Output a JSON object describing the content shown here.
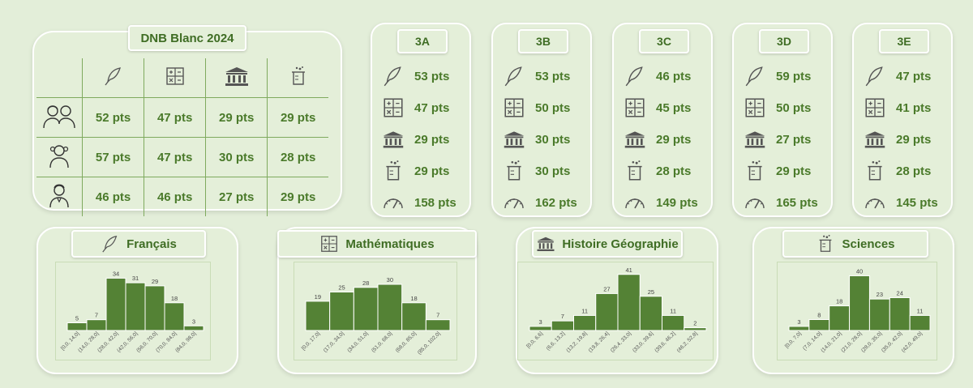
{
  "overview": {
    "title": "DNB Blanc 2024",
    "columns": [
      {
        "icon": "quill-icon"
      },
      {
        "icon": "calculator-icon"
      },
      {
        "icon": "museum-icon"
      },
      {
        "icon": "beaker-icon"
      }
    ],
    "rows": [
      {
        "icon": "students-group-icon",
        "values": [
          "52 pts",
          "47 pts",
          "29 pts",
          "29 pts"
        ]
      },
      {
        "icon": "girl-icon",
        "values": [
          "57 pts",
          "47 pts",
          "30 pts",
          "28 pts"
        ]
      },
      {
        "icon": "boy-icon",
        "values": [
          "46 pts",
          "46 pts",
          "27 pts",
          "29 pts"
        ]
      }
    ]
  },
  "classes": [
    {
      "name": "3A",
      "values": [
        "53 pts",
        "47 pts",
        "29 pts",
        "29 pts",
        "158 pts"
      ]
    },
    {
      "name": "3B",
      "values": [
        "53 pts",
        "50 pts",
        "30 pts",
        "30 pts",
        "162 pts"
      ]
    },
    {
      "name": "3C",
      "values": [
        "46 pts",
        "45 pts",
        "29 pts",
        "28 pts",
        "149 pts"
      ]
    },
    {
      "name": "3D",
      "values": [
        "59 pts",
        "50 pts",
        "27 pts",
        "29 pts",
        "165 pts"
      ]
    },
    {
      "name": "3E",
      "values": [
        "47 pts",
        "41 pts",
        "29 pts",
        "28 pts",
        "145 pts"
      ]
    }
  ],
  "class_icons": [
    "quill-icon",
    "calculator-icon",
    "museum-icon",
    "beaker-icon",
    "gauge-icon"
  ],
  "colors": {
    "bar": "#548235",
    "text": "#4a7a2a",
    "card_bg": "#e4efd9",
    "page_bg": "#e3eed9"
  },
  "subjects": [
    {
      "title": "Français",
      "icon": "quill-icon"
    },
    {
      "title": "Mathématiques",
      "icon": "calculator-icon"
    },
    {
      "title": "Histoire Géographie",
      "icon": "museum-icon"
    },
    {
      "title": "Sciences",
      "icon": "beaker-icon"
    }
  ],
  "chart_data": [
    {
      "type": "bar",
      "title": "Français",
      "categories": [
        "[0,0, 14,0]",
        "(14,0, 28,0]",
        "(28,0, 42,0]",
        "(42,0, 56,0]",
        "(56,0, 70,0]",
        "(70,0, 84,0]",
        "(84,0, 98,0]"
      ],
      "values": [
        5,
        7,
        34,
        31,
        29,
        18,
        3
      ],
      "ylim": [
        0,
        40
      ]
    },
    {
      "type": "bar",
      "title": "Mathématiques",
      "categories": [
        "[0,0, 17,0]",
        "(17,0, 34,0]",
        "(34,0, 51,0]",
        "(51,0, 68,0]",
        "(68,0, 85,0]",
        "(85,0, 102,0]"
      ],
      "values": [
        19,
        25,
        28,
        30,
        18,
        7
      ],
      "ylim": [
        0,
        40
      ]
    },
    {
      "type": "bar",
      "title": "Histoire Géographie",
      "categories": [
        "[0,0, 6,6]",
        "(6,6, 13,2]",
        "(13,2, 19,8]",
        "(19,8, 26,4]",
        "(26,4, 33,0]",
        "(33,0, 39,6]",
        "(39,6, 46,2]",
        "(46,2, 52,8]"
      ],
      "values": [
        3,
        7,
        11,
        27,
        41,
        25,
        11,
        2
      ],
      "ylim": [
        0,
        45
      ]
    },
    {
      "type": "bar",
      "title": "Sciences",
      "categories": [
        "[0,0, 7,0]",
        "(7,0, 14,0]",
        "(14,0, 21,0]",
        "(21,0, 28,0]",
        "(28,0, 35,0]",
        "(35,0, 42,0]",
        "(42,0, 49,0]"
      ],
      "values": [
        3,
        8,
        18,
        40,
        23,
        24,
        11
      ],
      "ylim": [
        0,
        45
      ]
    }
  ]
}
